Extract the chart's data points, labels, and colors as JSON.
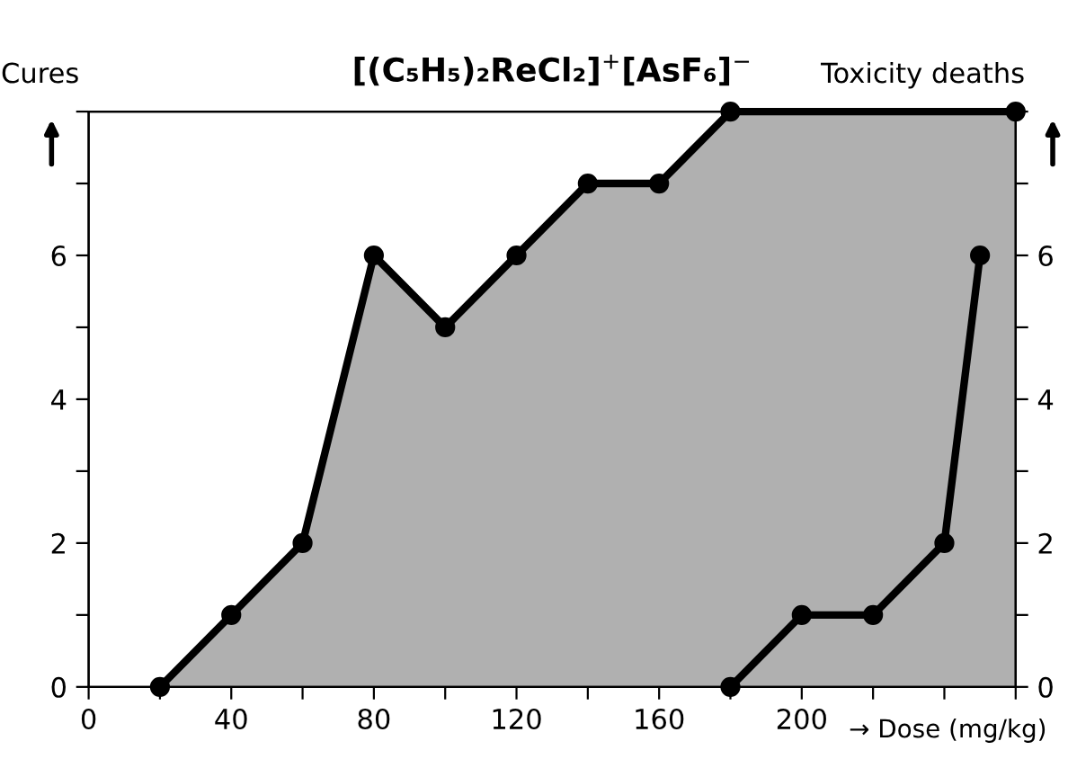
{
  "chart_data": {
    "type": "line",
    "title": "[(C₅H₅)₂ReCl₂]$^{+}$[AsF₆]$^{−}$",
    "xlabel": "→ Dose (mg/kg)",
    "ylabel": "Cures",
    "y2label": "Toxicity deaths",
    "series": [
      {
        "type": "area",
        "color": "#000000",
        "x": [
          20,
          40,
          60,
          80,
          100,
          120,
          140,
          160,
          180,
          260
        ],
        "values": [
          0,
          1,
          2,
          6,
          5,
          6,
          7,
          7,
          8,
          8
        ]
      },
      {
        "color": "#000000",
        "x": [
          180,
          200,
          220,
          240,
          250
        ],
        "values": [
          0,
          1,
          1,
          2,
          6
        ]
      }
    ],
    "xlim": [
      0,
      260
    ],
    "xticks": [
      0,
      {
        "value": 20,
        "label": null
      },
      40,
      {
        "value": 60,
        "label": null
      },
      80,
      {
        "value": 100,
        "label": null
      },
      120,
      {
        "value": 140,
        "label": null
      },
      160,
      {
        "value": 180,
        "label": null
      },
      200,
      {
        "value": 220,
        "label": null
      },
      {
        "value": 240,
        "label": null
      },
      {
        "value": 260,
        "label": null
      }
    ],
    "ylim": [
      0,
      8
    ],
    "yticks": [
      0,
      {
        "value": 1,
        "label": null
      },
      2,
      {
        "value": 3,
        "label": null
      },
      4,
      {
        "value": 5,
        "label": null
      },
      6,
      {
        "value": 7,
        "label": null
      },
      {
        "value": 8,
        "label": null
      }
    ],
    "y2lim": [
      0,
      8
    ],
    "y2ticks": [
      0,
      {
        "value": 1,
        "label": null
      },
      2,
      {
        "value": 3,
        "label": null
      },
      4,
      {
        "value": 5,
        "label": null
      },
      6,
      {
        "value": 7,
        "label": null
      },
      {
        "value": 8,
        "label": null
      }
    ],
    "marker": "circle",
    "grid": false,
    "legend": false
  }
}
